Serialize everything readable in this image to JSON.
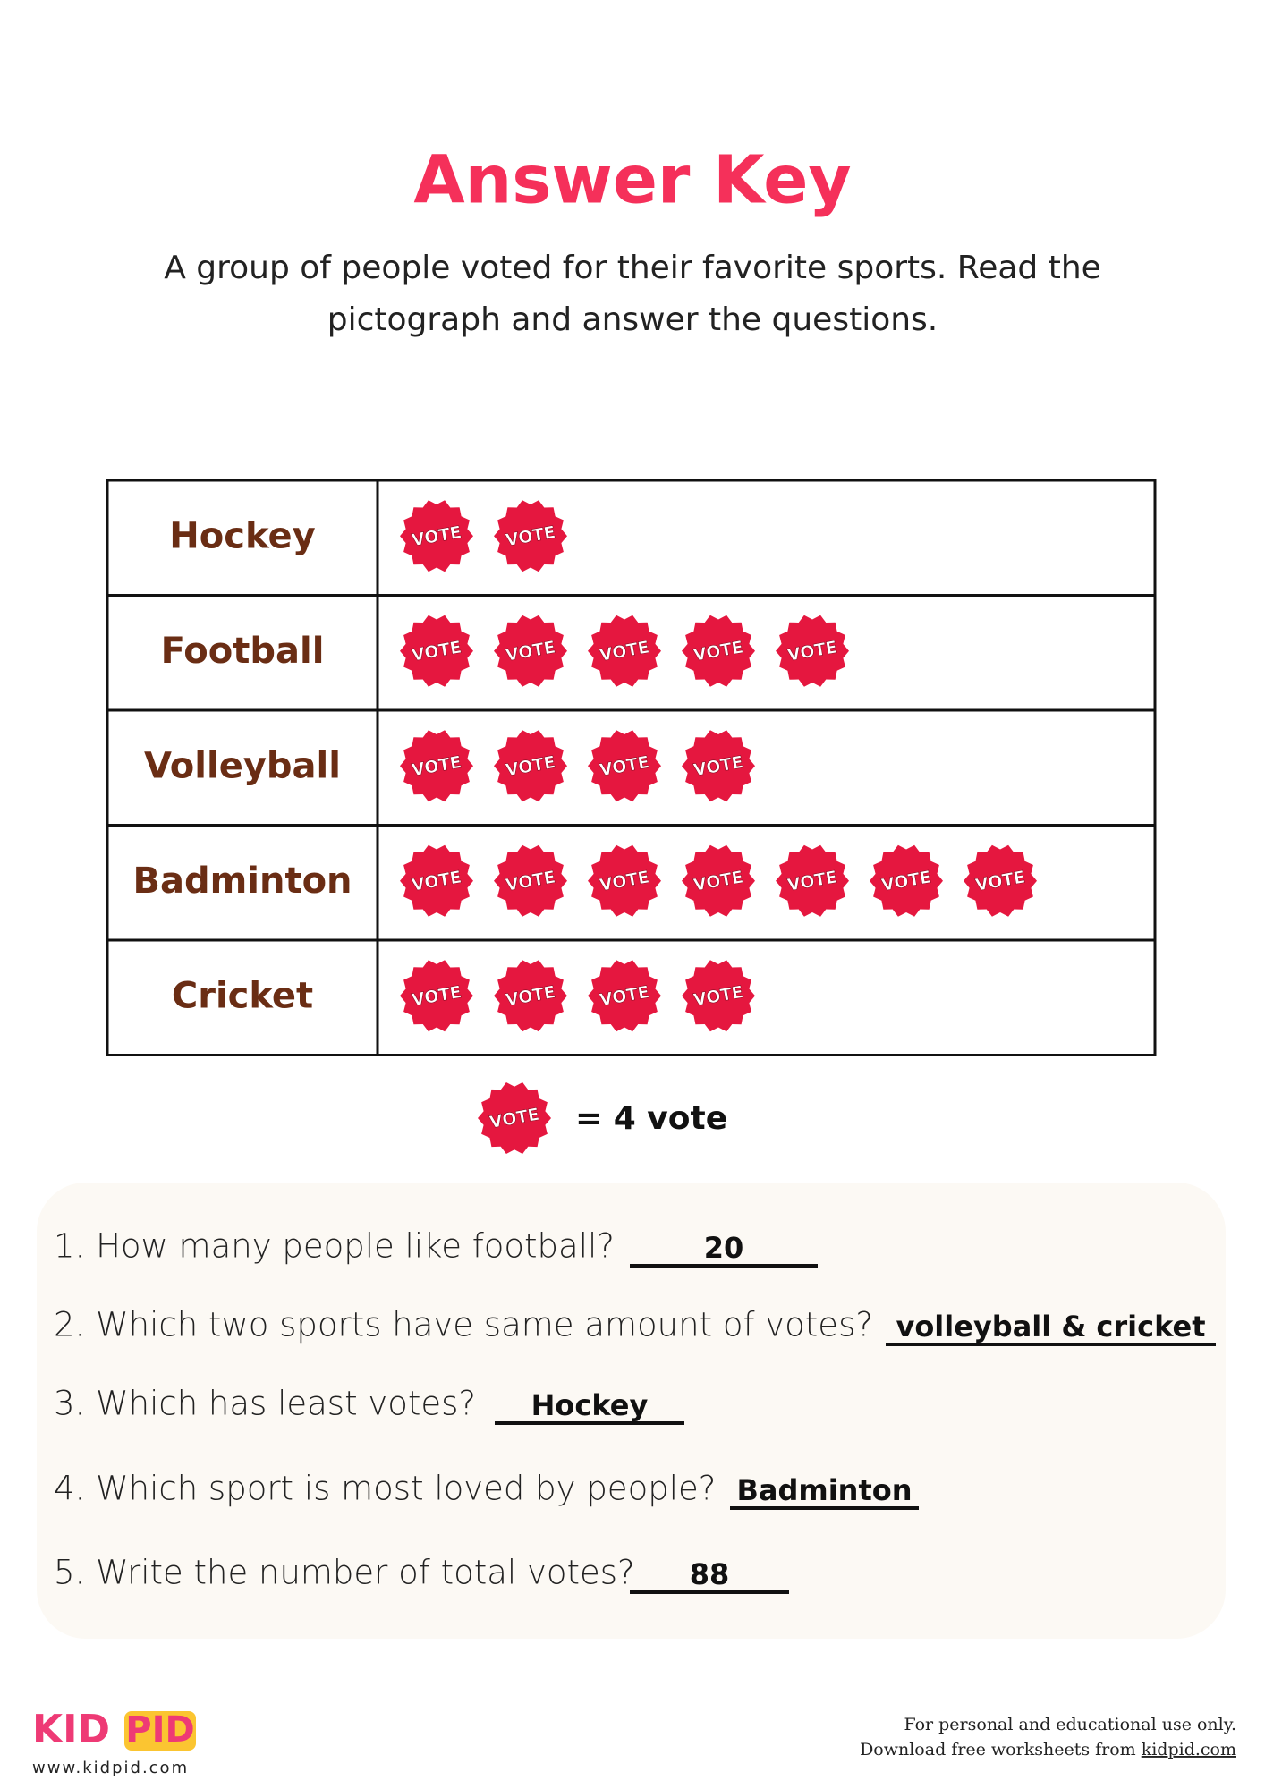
{
  "header": {
    "title": "Answer Key",
    "instructions": [
      "A group of people voted for their favorite sports. Read the",
      "pictograph and answer the questions."
    ]
  },
  "pictograph": {
    "icon_text": "VOTE",
    "rows": [
      {
        "label": "Hockey",
        "icons": 2
      },
      {
        "label": "Football",
        "icons": 5
      },
      {
        "label": "Volleyball",
        "icons": 4
      },
      {
        "label": "Badminton",
        "icons": 7
      },
      {
        "label": "Cricket",
        "icons": 4
      }
    ],
    "key": {
      "icon_text": "VOTE",
      "text": "= 4 vote"
    }
  },
  "questions": [
    {
      "text": "1. How many people like football?",
      "answer": "20"
    },
    {
      "text": "2. Which two sports have same amount of votes?",
      "answer": "volleyball & cricket"
    },
    {
      "text": "3. Which has least votes?",
      "answer": "Hockey"
    },
    {
      "text": "4. Which sport is most loved by people?",
      "answer": "Badminton"
    },
    {
      "text": "5. Write the number of total votes?",
      "answer": "88"
    }
  ],
  "footer": {
    "logo_left": "KID",
    "logo_right": "PID",
    "url": "www.kidpid.com",
    "note_line1": "For personal and educational use only.",
    "note_line2": "Download free worksheets from",
    "link": "kidpid.com"
  }
}
